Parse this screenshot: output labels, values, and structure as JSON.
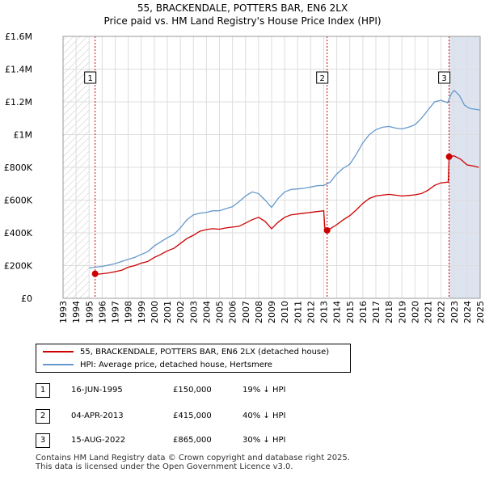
{
  "title_line1": "55, BRACKENDALE, POTTERS BAR, EN6 2LX",
  "title_line2": "Price paid vs. HM Land Registry's House Price Index (HPI)",
  "colors": {
    "red": "#cc0000",
    "blue": "#6699cc",
    "grid": "#dddddd",
    "shade": "#dde4f0"
  },
  "chart_data": {
    "type": "line",
    "title": "Price paid vs. HM Land Registry's House Price Index (HPI)",
    "xlabel": "",
    "ylabel": "",
    "xlim": [
      1993,
      2025
    ],
    "ylim": [
      0,
      1600000
    ],
    "x_ticks": [
      1993,
      1994,
      1995,
      1996,
      1997,
      1998,
      1999,
      2000,
      2001,
      2002,
      2003,
      2004,
      2005,
      2006,
      2007,
      2008,
      2009,
      2010,
      2011,
      2012,
      2013,
      2014,
      2015,
      2016,
      2017,
      2018,
      2019,
      2020,
      2021,
      2022,
      2023,
      2024,
      2025
    ],
    "y_ticks": [
      0,
      200000,
      400000,
      600000,
      800000,
      1000000,
      1200000,
      1400000,
      1600000
    ],
    "y_tick_labels": [
      "£0",
      "£200K",
      "£400K",
      "£600K",
      "£800K",
      "£1M",
      "£1.2M",
      "£1.4M",
      "£1.6M"
    ],
    "series": [
      {
        "name": "55, BRACKENDALE, POTTERS BAR, EN6 2LX (detached house)",
        "color": "#cc0000",
        "points": [
          [
            1995.46,
            150000
          ],
          [
            1995.8,
            148000
          ],
          [
            1996.5,
            155000
          ],
          [
            1997,
            163000
          ],
          [
            1997.5,
            172000
          ],
          [
            1998,
            190000
          ],
          [
            1998.5,
            200000
          ],
          [
            1999,
            215000
          ],
          [
            1999.5,
            225000
          ],
          [
            2000,
            250000
          ],
          [
            2000.5,
            268000
          ],
          [
            2001,
            290000
          ],
          [
            2001.5,
            305000
          ],
          [
            2002,
            335000
          ],
          [
            2002.5,
            365000
          ],
          [
            2003,
            385000
          ],
          [
            2003.5,
            410000
          ],
          [
            2004,
            420000
          ],
          [
            2004.5,
            425000
          ],
          [
            2005,
            422000
          ],
          [
            2005.5,
            430000
          ],
          [
            2006,
            435000
          ],
          [
            2006.5,
            440000
          ],
          [
            2007,
            460000
          ],
          [
            2007.5,
            480000
          ],
          [
            2008,
            495000
          ],
          [
            2008.5,
            470000
          ],
          [
            2009,
            425000
          ],
          [
            2009.5,
            465000
          ],
          [
            2010,
            495000
          ],
          [
            2010.5,
            510000
          ],
          [
            2011,
            515000
          ],
          [
            2011.5,
            520000
          ],
          [
            2012,
            525000
          ],
          [
            2012.5,
            530000
          ],
          [
            2013,
            535000
          ],
          [
            2013.1,
            410000
          ],
          [
            2013.26,
            415000
          ],
          [
            2013.5,
            425000
          ],
          [
            2014,
            450000
          ],
          [
            2014.5,
            480000
          ],
          [
            2015,
            505000
          ],
          [
            2015.5,
            540000
          ],
          [
            2016,
            580000
          ],
          [
            2016.5,
            610000
          ],
          [
            2017,
            625000
          ],
          [
            2017.5,
            630000
          ],
          [
            2018,
            635000
          ],
          [
            2018.5,
            630000
          ],
          [
            2019,
            625000
          ],
          [
            2019.5,
            628000
          ],
          [
            2020,
            632000
          ],
          [
            2020.5,
            640000
          ],
          [
            2021,
            660000
          ],
          [
            2021.5,
            690000
          ],
          [
            2022,
            705000
          ],
          [
            2022.55,
            710000
          ],
          [
            2022.62,
            865000
          ],
          [
            2023,
            870000
          ],
          [
            2023.5,
            850000
          ],
          [
            2024,
            815000
          ],
          [
            2024.5,
            808000
          ],
          [
            2024.9,
            800000
          ]
        ]
      },
      {
        "name": "HPI: Average price, detached house, Hertsmere",
        "color": "#6699cc",
        "points": [
          [
            1995,
            185000
          ],
          [
            1995.5,
            190000
          ],
          [
            1996,
            195000
          ],
          [
            1996.5,
            203000
          ],
          [
            1997,
            212000
          ],
          [
            1997.5,
            225000
          ],
          [
            1998,
            238000
          ],
          [
            1998.5,
            250000
          ],
          [
            1999,
            268000
          ],
          [
            1999.5,
            285000
          ],
          [
            2000,
            320000
          ],
          [
            2000.5,
            345000
          ],
          [
            2001,
            370000
          ],
          [
            2001.5,
            390000
          ],
          [
            2002,
            430000
          ],
          [
            2002.5,
            480000
          ],
          [
            2003,
            510000
          ],
          [
            2003.5,
            520000
          ],
          [
            2004,
            525000
          ],
          [
            2004.5,
            535000
          ],
          [
            2005,
            535000
          ],
          [
            2005.5,
            548000
          ],
          [
            2006,
            560000
          ],
          [
            2006.5,
            590000
          ],
          [
            2007,
            625000
          ],
          [
            2007.5,
            650000
          ],
          [
            2008,
            640000
          ],
          [
            2008.5,
            600000
          ],
          [
            2009,
            555000
          ],
          [
            2009.5,
            610000
          ],
          [
            2010,
            650000
          ],
          [
            2010.5,
            665000
          ],
          [
            2011,
            668000
          ],
          [
            2011.5,
            672000
          ],
          [
            2012,
            680000
          ],
          [
            2012.5,
            688000
          ],
          [
            2013,
            690000
          ],
          [
            2013.5,
            710000
          ],
          [
            2014,
            760000
          ],
          [
            2014.5,
            795000
          ],
          [
            2015,
            820000
          ],
          [
            2015.5,
            880000
          ],
          [
            2016,
            950000
          ],
          [
            2016.5,
            1000000
          ],
          [
            2017,
            1030000
          ],
          [
            2017.5,
            1045000
          ],
          [
            2018,
            1050000
          ],
          [
            2018.5,
            1040000
          ],
          [
            2019,
            1035000
          ],
          [
            2019.5,
            1045000
          ],
          [
            2020,
            1060000
          ],
          [
            2020.5,
            1100000
          ],
          [
            2021,
            1150000
          ],
          [
            2021.5,
            1200000
          ],
          [
            2022,
            1210000
          ],
          [
            2022.5,
            1195000
          ],
          [
            2022.8,
            1250000
          ],
          [
            2023,
            1270000
          ],
          [
            2023.4,
            1240000
          ],
          [
            2023.8,
            1180000
          ],
          [
            2024.2,
            1160000
          ],
          [
            2024.6,
            1155000
          ],
          [
            2025,
            1150000
          ]
        ]
      }
    ],
    "sales": [
      {
        "marker": "1",
        "x": 1995.46,
        "price": 150000
      },
      {
        "marker": "2",
        "x": 2013.26,
        "price": 415000
      },
      {
        "marker": "3",
        "x": 2022.62,
        "price": 865000
      }
    ],
    "shaded_ranges": [
      [
        2022.62,
        2025
      ]
    ],
    "hatched_ranges": [
      [
        1993,
        1995.0
      ]
    ]
  },
  "legend": {
    "property": "55, BRACKENDALE, POTTERS BAR, EN6 2LX (detached house)",
    "hpi": "HPI: Average price, detached house, Hertsmere"
  },
  "sales_table": [
    {
      "num": "1",
      "date": "16-JUN-1995",
      "price": "£150,000",
      "hpi": "19% ↓ HPI"
    },
    {
      "num": "2",
      "date": "04-APR-2013",
      "price": "£415,000",
      "hpi": "40% ↓ HPI"
    },
    {
      "num": "3",
      "date": "15-AUG-2022",
      "price": "£865,000",
      "hpi": "30% ↓ HPI"
    }
  ],
  "footer_line1": "Contains HM Land Registry data © Crown copyright and database right 2025.",
  "footer_line2": "This data is licensed under the Open Government Licence v3.0."
}
